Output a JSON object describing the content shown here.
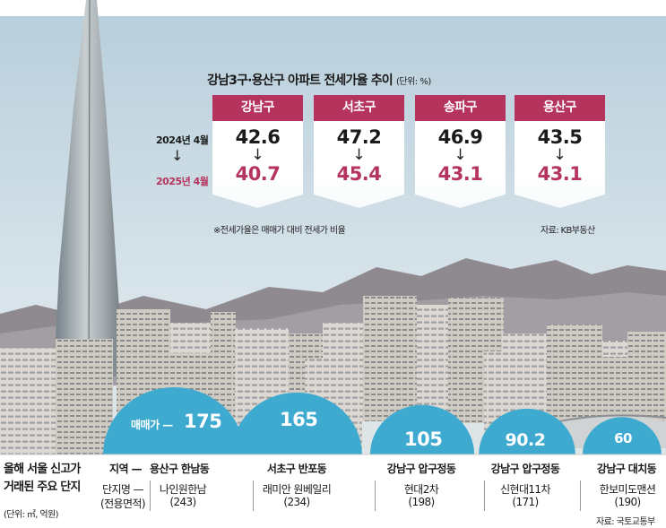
{
  "chart_data": [
    {
      "type": "table",
      "title": "강남3구·용산구 아파트 전세가율 추이",
      "unit": "(단위: %)",
      "columns": [
        "강남구",
        "서초구",
        "송파구",
        "용산구"
      ],
      "rows": [
        {
          "label": "2024년 4월",
          "values": [
            42.6,
            47.2,
            46.9,
            43.5
          ]
        },
        {
          "label": "2025년 4월",
          "values": [
            40.7,
            45.4,
            43.1,
            43.1
          ]
        }
      ],
      "display": {
        "2024": [
          "42.6",
          "47.2",
          "46.9",
          "43.5"
        ],
        "2025": [
          "40.7",
          "45.4",
          "43.1",
          "43.1"
        ]
      },
      "arrow": "↓",
      "note": "※전세가율은 매매가 대비 전세가 비율",
      "source": "자료: KB부동산"
    },
    {
      "type": "bar",
      "title": "올해 서울 신고가 거래된 주요 단지",
      "title_lines": [
        "올해 서울 신고가",
        "거래된 주요 단지"
      ],
      "unit": "(단위: ㎡, 억원)",
      "legend": {
        "price_prefix": "매매가 —",
        "region_header": "지역 —",
        "complex_header": "단지명 —",
        "area_header": "(전용면적)"
      },
      "categories": [
        "용산구 한남동",
        "서초구 반포동",
        "강남구 압구정동",
        "강남구 압구정동",
        "강남구 대치동"
      ],
      "complexes": [
        "나인원한남",
        "래미안 원베일리",
        "현대2차",
        "신현대11차",
        "한보미도맨션"
      ],
      "areas": [
        "(243)",
        "(234)",
        "(198)",
        "(171)",
        "(190)"
      ],
      "values": [
        175,
        165,
        105,
        90.2,
        60
      ],
      "value_labels": [
        "175",
        "165",
        "105",
        "90.2",
        "60"
      ],
      "source": "자료: 국토교통부"
    }
  ],
  "colors": {
    "accent": "#b5345d",
    "bubble": "#3eaad0",
    "sky": "#cfe0ea",
    "mountain": "#8e8a8f",
    "building": "#d9d5cf"
  }
}
